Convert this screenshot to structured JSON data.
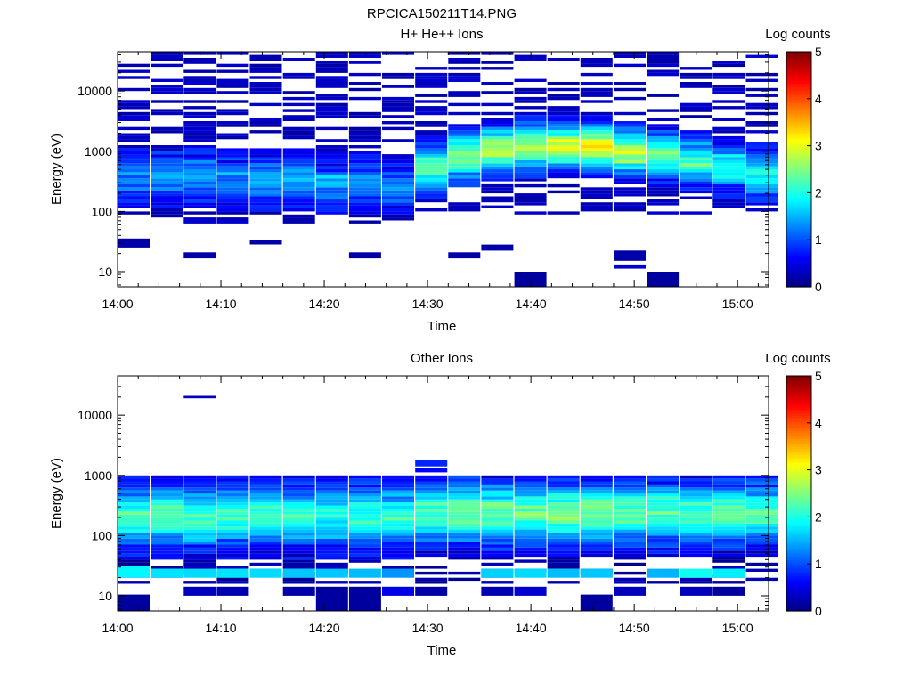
{
  "figure_title": "RPCICA150211T14.PNG",
  "chart_data": [
    {
      "type": "heatmap",
      "title": "H+ He++ Ions",
      "xlabel": "Time",
      "ylabel": "Energy (eV)",
      "x_range": [
        "14:00",
        "15:03"
      ],
      "y_scale": "log",
      "y_range": [
        5.6,
        45000
      ],
      "x_ticks": [
        "14:00",
        "14:10",
        "14:20",
        "14:30",
        "14:40",
        "14:50",
        "15:00"
      ],
      "y_ticks": [
        "10",
        "100",
        "1000",
        "10000"
      ],
      "colorbar": {
        "label": "Log counts",
        "range": [
          0,
          5
        ],
        "ticks": [
          "0",
          "1",
          "2",
          "3",
          "4",
          "5"
        ],
        "colormap": "jet"
      },
      "profile": {
        "base": 0.45,
        "bg": 0.18,
        "peak_logE": [
          2.55,
          2.55,
          2.55,
          2.5,
          2.5,
          2.5,
          2.45,
          2.45,
          2.4,
          2.7,
          2.9,
          3.0,
          3.05,
          3.05,
          3.05,
          2.95,
          2.9,
          2.8,
          2.7,
          2.6
        ],
        "peak_value": [
          0.9,
          1.0,
          1.0,
          1.0,
          1.05,
          1.0,
          0.95,
          0.9,
          0.9,
          1.9,
          2.2,
          2.35,
          2.4,
          2.55,
          2.6,
          2.3,
          2.0,
          1.8,
          1.6,
          1.5
        ],
        "width": 0.32,
        "lo": 1.95,
        "hi": 4.6,
        "lo_low": 1.8,
        "seed": 7
      },
      "extra_cells": [
        {
          "t": 0,
          "e0": 1.4,
          "e1": 1.55,
          "v": 0.2
        },
        {
          "t": 4,
          "e0": 1.45,
          "e1": 1.52,
          "v": 0.2
        },
        {
          "t": 2,
          "e0": 1.22,
          "e1": 1.32,
          "v": 0.2
        },
        {
          "t": 7,
          "e0": 1.22,
          "e1": 1.32,
          "v": 0.2
        },
        {
          "t": 10,
          "e0": 1.22,
          "e1": 1.32,
          "v": 0.2
        },
        {
          "t": 12,
          "e0": 0.75,
          "e1": 1.0,
          "v": 0.15
        },
        {
          "t": 15,
          "e0": 1.18,
          "e1": 1.35,
          "v": 0.2
        },
        {
          "t": 15,
          "e0": 1.05,
          "e1": 1.12,
          "v": 0.4
        },
        {
          "t": 16,
          "e0": 0.75,
          "e1": 1.0,
          "v": 0.15
        },
        {
          "t": 11,
          "e0": 1.35,
          "e1": 1.45,
          "v": 0.2
        }
      ]
    },
    {
      "type": "heatmap",
      "title": "Other Ions",
      "xlabel": "Time",
      "ylabel": "Energy (eV)",
      "x_range": [
        "14:00",
        "15:03"
      ],
      "y_scale": "log",
      "y_range": [
        5.6,
        45000
      ],
      "x_ticks": [
        "14:00",
        "14:10",
        "14:20",
        "14:30",
        "14:40",
        "14:50",
        "15:00"
      ],
      "y_ticks": [
        "10",
        "100",
        "1000",
        "10000"
      ],
      "colorbar": {
        "label": "Log counts",
        "range": [
          0,
          5
        ],
        "ticks": [
          "0",
          "1",
          "2",
          "3",
          "4",
          "5"
        ],
        "colormap": "jet"
      },
      "profile": {
        "base": 0.35,
        "bg": 0.06,
        "peak_logE": [
          2.3,
          2.3,
          2.3,
          2.3,
          2.3,
          2.3,
          2.3,
          2.3,
          2.3,
          2.35,
          2.35,
          2.35,
          2.35,
          2.35,
          2.35,
          2.35,
          2.35,
          2.35,
          2.35,
          2.35
        ],
        "peak_value": [
          1.9,
          1.9,
          1.95,
          1.85,
          1.8,
          1.8,
          1.75,
          1.7,
          1.7,
          1.95,
          2.05,
          2.05,
          2.05,
          2.1,
          2.1,
          1.95,
          1.95,
          1.95,
          2.05,
          1.9
        ],
        "width": 0.45,
        "lo": 1.2,
        "hi": 2.95,
        "lo_low": 1.2,
        "seed": 23
      },
      "extra_cells": [
        {
          "t": 0,
          "e0": 1.3,
          "e1": 1.5,
          "v": 1.85
        },
        {
          "t": 1,
          "e0": 1.3,
          "e1": 1.45,
          "v": 1.75
        },
        {
          "t": 2,
          "e0": 1.3,
          "e1": 1.45,
          "v": 1.7
        },
        {
          "t": 3,
          "e0": 1.3,
          "e1": 1.45,
          "v": 1.75
        },
        {
          "t": 4,
          "e0": 1.3,
          "e1": 1.45,
          "v": 1.7
        },
        {
          "t": 5,
          "e0": 1.3,
          "e1": 1.45,
          "v": 1.6
        },
        {
          "t": 6,
          "e0": 1.3,
          "e1": 1.45,
          "v": 1.6
        },
        {
          "t": 7,
          "e0": 1.3,
          "e1": 1.45,
          "v": 1.55
        },
        {
          "t": 8,
          "e0": 1.3,
          "e1": 1.45,
          "v": 1.35
        },
        {
          "t": 11,
          "e0": 1.3,
          "e1": 1.45,
          "v": 1.65
        },
        {
          "t": 12,
          "e0": 1.3,
          "e1": 1.45,
          "v": 1.7
        },
        {
          "t": 13,
          "e0": 1.3,
          "e1": 1.45,
          "v": 1.55
        },
        {
          "t": 14,
          "e0": 1.3,
          "e1": 1.45,
          "v": 1.6
        },
        {
          "t": 16,
          "e0": 1.3,
          "e1": 1.45,
          "v": 1.5
        },
        {
          "t": 17,
          "e0": 1.3,
          "e1": 1.45,
          "v": 1.95
        },
        {
          "t": 18,
          "e0": 1.3,
          "e1": 1.45,
          "v": 1.8
        },
        {
          "t": 0,
          "e0": 0.75,
          "e1": 1.02,
          "v": 0.15
        },
        {
          "t": 2,
          "e0": 1.0,
          "e1": 1.15,
          "v": 0.3
        },
        {
          "t": 3,
          "e0": 1.0,
          "e1": 1.15,
          "v": 0.25
        },
        {
          "t": 5,
          "e0": 1.0,
          "e1": 1.15,
          "v": 0.2
        },
        {
          "t": 6,
          "e0": 0.75,
          "e1": 1.15,
          "v": 0.15
        },
        {
          "t": 7,
          "e0": 0.75,
          "e1": 1.15,
          "v": 0.15
        },
        {
          "t": 8,
          "e0": 1.0,
          "e1": 1.15,
          "v": 0.5
        },
        {
          "t": 9,
          "e0": 1.0,
          "e1": 1.15,
          "v": 0.2
        },
        {
          "t": 11,
          "e0": 1.0,
          "e1": 1.15,
          "v": 0.25
        },
        {
          "t": 12,
          "e0": 1.0,
          "e1": 1.15,
          "v": 0.4
        },
        {
          "t": 15,
          "e0": 1.0,
          "e1": 1.15,
          "v": 0.3
        },
        {
          "t": 14,
          "e0": 0.75,
          "e1": 1.02,
          "v": 0.15
        },
        {
          "t": 17,
          "e0": 1.0,
          "e1": 1.15,
          "v": 0.3
        },
        {
          "t": 18,
          "e0": 1.0,
          "e1": 1.15,
          "v": 0.15
        },
        {
          "t": 2,
          "e0": 4.28,
          "e1": 4.32,
          "v": 0.3
        },
        {
          "t": 9,
          "e0": 3.15,
          "e1": 3.25,
          "v": 0.8
        },
        {
          "t": 9,
          "e0": 3.05,
          "e1": 3.12,
          "v": 0.6
        }
      ]
    }
  ]
}
